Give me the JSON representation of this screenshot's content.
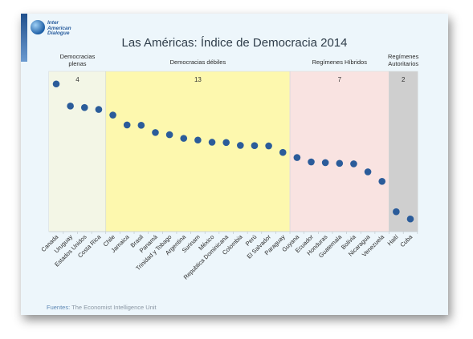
{
  "logo": {
    "text": "Inter\nAmerican\nDialogue"
  },
  "source": {
    "label": "Fuentes:",
    "text": "The Economist Intelligence Unit"
  },
  "chart_data": {
    "type": "scatter",
    "title": "Las Américas: Índice de Democracia 2014",
    "xlabel": "",
    "ylabel": "",
    "grid": false,
    "point_color": "#2b5c9a",
    "categories": [
      "Canada",
      "Uruguay",
      "Estados Unidos",
      "Costa Rica",
      "Chile",
      "Jamaica",
      "Brasil",
      "Panamá",
      "Trinidad y Tobago",
      "Argentina",
      "Surinam",
      "México",
      "Republica Dominicana",
      "Colombia",
      "Perú",
      "El Salvador",
      "Paraguay",
      "Guyana",
      "Ecuador",
      "Honduras",
      "Guatemala",
      "Bolivia",
      "Nicaragua",
      "Venezuela",
      "Haití",
      "Cuba"
    ],
    "values": [
      9.08,
      8.17,
      8.11,
      8.03,
      7.8,
      7.39,
      7.38,
      7.08,
      6.99,
      6.84,
      6.77,
      6.68,
      6.67,
      6.55,
      6.54,
      6.53,
      6.26,
      6.05,
      5.87,
      5.84,
      5.81,
      5.79,
      5.46,
      5.07,
      3.82,
      3.52
    ],
    "ylim": [
      3.0,
      9.6
    ],
    "groups": [
      {
        "name": "Democracias\nplenas",
        "count": "4",
        "start": 0,
        "end": 3,
        "color": "#f3f6e6"
      },
      {
        "name": "Democracias débiles",
        "count": "13",
        "start": 4,
        "end": 16,
        "color": "#fdf8ae"
      },
      {
        "name": "Regímenes Híbridos",
        "count": "7",
        "start": 17,
        "end": 23,
        "color": "#f9e3e1"
      },
      {
        "name": "Regímenes\nAutoritarios",
        "count": "2",
        "start": 24,
        "end": 25,
        "color": "#cfcfcf"
      }
    ]
  }
}
